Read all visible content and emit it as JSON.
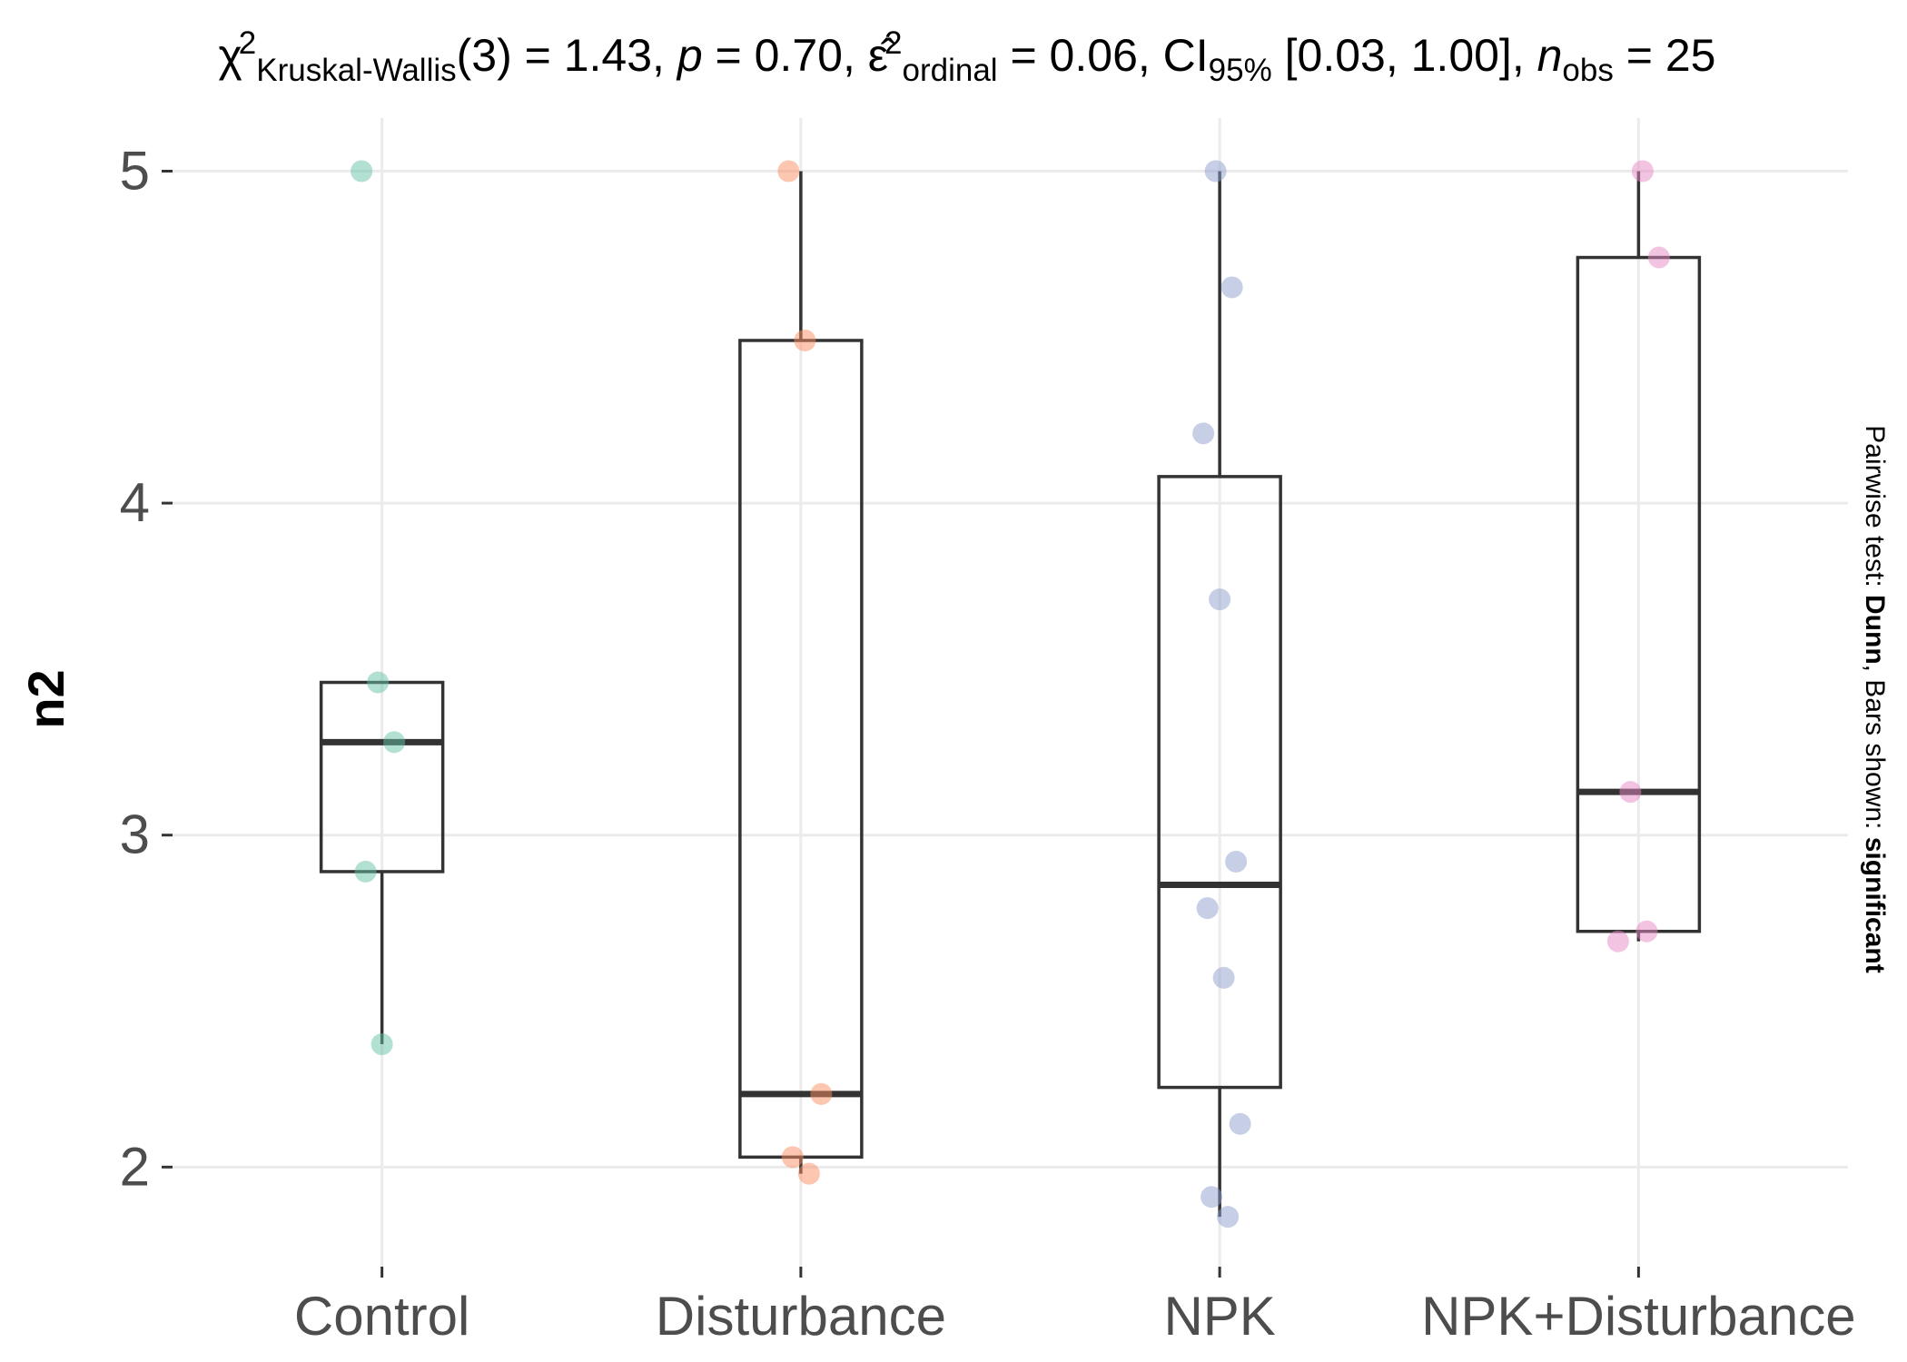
{
  "chart_data": {
    "type": "box",
    "title": {
      "parts": [
        {
          "t": "χ",
          "style": "normal"
        },
        {
          "t": "2",
          "style": "sup"
        },
        {
          "t": "Kruskal-Wallis",
          "style": "sub"
        },
        {
          "t": "(3) = 1.43, ",
          "style": "normal"
        },
        {
          "t": "p",
          "style": "italic"
        },
        {
          "t": " = 0.70, ",
          "style": "normal"
        },
        {
          "t": "ε̂",
          "style": "normal"
        },
        {
          "t": "2",
          "style": "sup"
        },
        {
          "t": "ordinal",
          "style": "sub"
        },
        {
          "t": " = 0.06, CI",
          "style": "normal"
        },
        {
          "t": "95%",
          "style": "sub"
        },
        {
          "t": " [0.03, 1.00], ",
          "style": "normal"
        },
        {
          "t": "n",
          "style": "italic"
        },
        {
          "t": "obs",
          "style": "sub"
        },
        {
          "t": " = 25",
          "style": "normal"
        }
      ]
    },
    "xlabel": "",
    "ylabel": "n2",
    "ylim": [
      1.7,
      5.16
    ],
    "yticks": [
      2,
      3,
      4,
      5
    ],
    "grid": true,
    "caption": {
      "parts": [
        {
          "t": "Pairwise test: ",
          "bold": false
        },
        {
          "t": "Dunn",
          "bold": true
        },
        {
          "t": ", Bars shown: ",
          "bold": false
        },
        {
          "t": "significant",
          "bold": true
        }
      ]
    },
    "categories": [
      "Control",
      "Disturbance",
      "NPK",
      "NPK+Disturbance"
    ],
    "colors": [
      "#66c2a5",
      "#fc8d62",
      "#8da0cb",
      "#e78ac3"
    ],
    "boxes": [
      {
        "q1": 2.89,
        "median": 3.28,
        "q3": 3.46,
        "whisker_low": 2.37,
        "whisker_high": 3.46
      },
      {
        "q1": 2.03,
        "median": 2.22,
        "q3": 4.49,
        "whisker_low": 1.98,
        "whisker_high": 5.0
      },
      {
        "q1": 2.24,
        "median": 2.85,
        "q3": 4.08,
        "whisker_low": 1.85,
        "whisker_high": 5.0
      },
      {
        "q1": 2.71,
        "median": 3.13,
        "q3": 4.74,
        "whisker_low": 2.68,
        "whisker_high": 5.0
      }
    ],
    "points": [
      [
        5.0,
        3.46,
        3.28,
        2.89,
        2.37
      ],
      [
        5.0,
        4.49,
        2.22,
        2.03,
        1.98
      ],
      [
        5.0,
        4.65,
        4.21,
        3.71,
        2.92,
        2.78,
        2.57,
        2.13,
        1.91,
        1.85
      ],
      [
        5.0,
        4.74,
        3.13,
        2.71,
        2.68
      ]
    ]
  }
}
